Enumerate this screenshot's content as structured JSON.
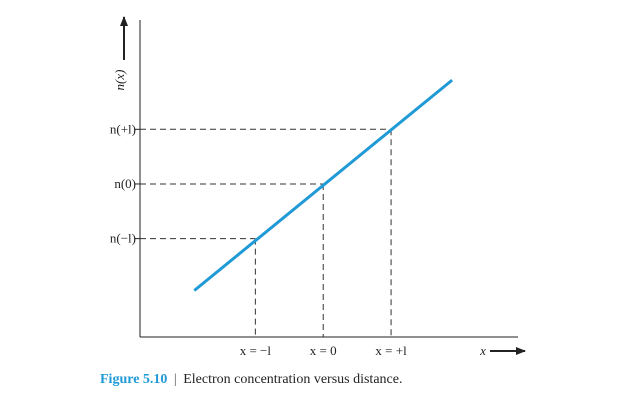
{
  "chart_data": {
    "type": "line",
    "xlabel": "x",
    "ylabel": "n(x)",
    "x_ticks": [
      {
        "value": -1,
        "label": "x = −l"
      },
      {
        "value": 0,
        "label": "x = 0"
      },
      {
        "value": 1,
        "label": "x = +l"
      }
    ],
    "y_ticks": [
      {
        "value": 1.2,
        "label": "n(−l)"
      },
      {
        "value": 2.2,
        "label": "n(0)"
      },
      {
        "value": 3.2,
        "label": "n(+l)"
      }
    ],
    "series": [
      {
        "values": [
          {
            "x": -1.9,
            "y": 0.25
          },
          {
            "x": 1.9,
            "y": 4.1
          }
        ]
      }
    ],
    "xlim": [
      -2.7,
      2.9
    ],
    "ylim": [
      -0.6,
      5.2
    ],
    "colors": {
      "line": "#1f9ad6",
      "axis": "#222222",
      "guide": "#333333"
    }
  },
  "caption": {
    "figure_label": "Figure 5.10",
    "separator": "|",
    "text": "Electron concentration versus distance."
  }
}
